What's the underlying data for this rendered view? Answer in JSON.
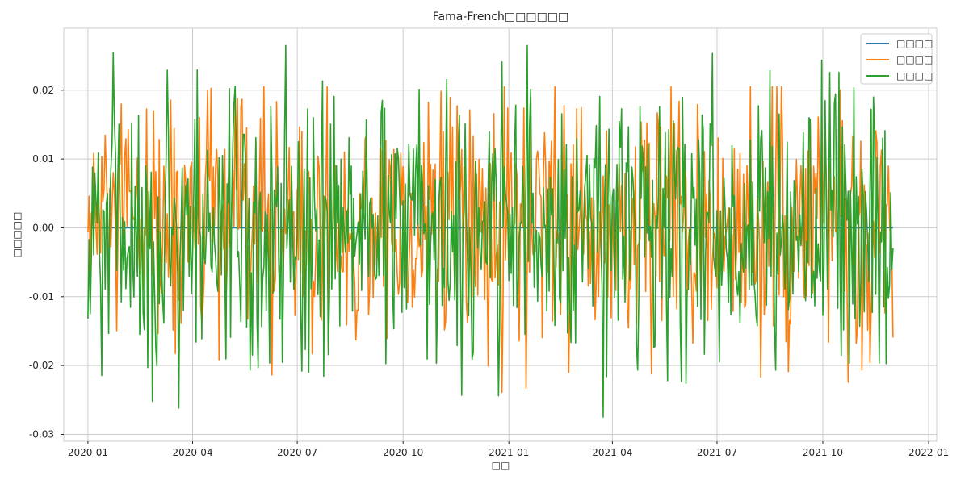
{
  "chart_data": {
    "type": "line",
    "title": "Fama-French□□□□□□",
    "xlabel": "□□",
    "ylabel": "□□□□□",
    "x_range": [
      "2019-12-11",
      "2022-01-08"
    ],
    "x_ticks": [
      "2020-01-01",
      "2020-04-01",
      "2020-07-01",
      "2020-10-01",
      "2021-01-01",
      "2021-04-01",
      "2021-07-01",
      "2021-10-01",
      "2022-01-01"
    ],
    "x_tick_labels": [
      "2020-01",
      "2020-04",
      "2020-07",
      "2020-10",
      "2021-01",
      "2021-04",
      "2021-07",
      "2021-10",
      "2022-01"
    ],
    "ylim": [
      -0.031,
      0.029
    ],
    "y_ticks": [
      -0.03,
      -0.02,
      -0.01,
      0.0,
      0.01,
      0.02
    ],
    "y_tick_labels": [
      "-0.03",
      "-0.02",
      "-0.01",
      "0.00",
      "0.01",
      "0.02"
    ],
    "grid": true,
    "legend_position": "top-right",
    "date_range": {
      "start": "2020-01-01",
      "end": "2021-12-01",
      "frequency": "daily"
    },
    "series": [
      {
        "name": "□□□□",
        "color": "#1f77b4",
        "constant_value": 0.0
      },
      {
        "name": "□□□□",
        "color": "#ff7f0e",
        "amplitude": 0.0092,
        "min": -0.028,
        "max": 0.0205
      },
      {
        "name": "□□□□",
        "color": "#2ca02c",
        "amplitude": 0.0105,
        "min": -0.0275,
        "max": 0.0265
      }
    ]
  }
}
